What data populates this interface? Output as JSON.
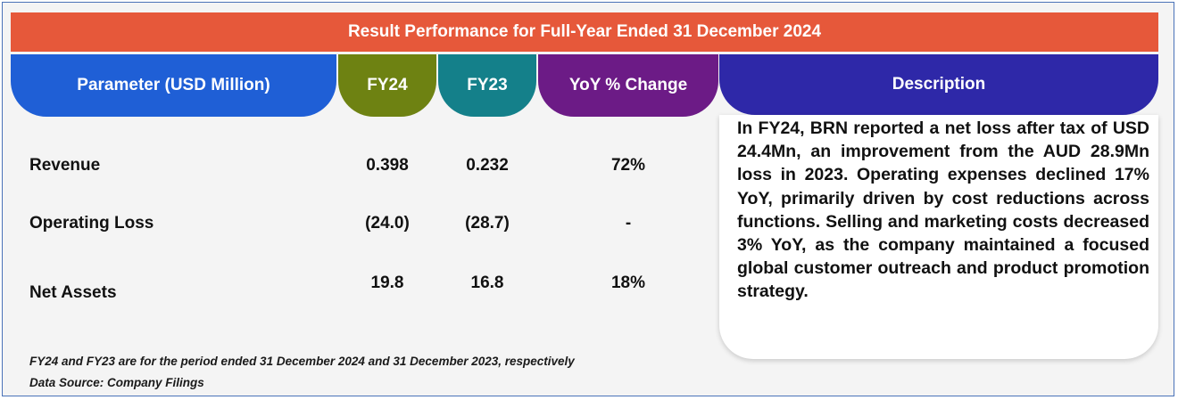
{
  "title": "Result Performance for Full-Year Ended 31 December 2024",
  "headers": {
    "parameter": "Parameter (USD Million)",
    "fy24": "FY24",
    "fy23": "FY23",
    "yoy": "YoY % Change",
    "description": "Description"
  },
  "rows": [
    {
      "label": "Revenue",
      "fy24": "0.398",
      "fy23": "0.232",
      "yoy": "72%"
    },
    {
      "label": "Operating Loss",
      "fy24": "(24.0)",
      "fy23": "(28.7)",
      "yoy": "-"
    },
    {
      "label": "Net Assets",
      "fy24": "19.8",
      "fy23": "16.8",
      "yoy": "18%"
    }
  ],
  "description": "In FY24, BRN reported a net loss after tax of USD 24.4Mn, an improvement from the AUD 28.9Mn loss in 2023. Operating expenses declined 17% YoY, primarily driven by cost reductions across functions. Selling and marketing costs decreased 3% YoY, as the company maintained a focused global customer outreach and product promotion strategy.",
  "footnotes": {
    "period": "FY24 and FY23 are for the period ended 31 December 2024 and 31 December 2023, respectively",
    "source": "Data Source: Company Filings"
  },
  "colors": {
    "title_bar": "#e6583a",
    "parameter_header": "#1f5fd6",
    "fy24_header": "#6e8212",
    "fy23_header": "#14808a",
    "yoy_header": "#6c1b86",
    "description_header": "#2e28a8"
  }
}
